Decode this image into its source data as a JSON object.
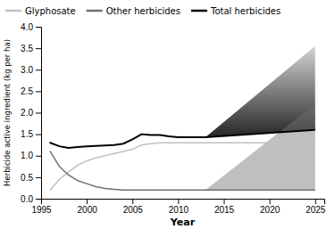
{
  "chart_data": {
    "type": "line",
    "xlabel": "Year",
    "ylabel": "Herbicide active ingredient (kg per ha)",
    "xlim": [
      1995,
      2026
    ],
    "ylim": [
      0.0,
      4.0
    ],
    "xticks": [
      1995,
      2000,
      2005,
      2010,
      2015,
      2020,
      2025
    ],
    "yticks": [
      {
        "value": 0.0,
        "label": "0.0"
      },
      0.5,
      {
        "value": 1.0,
        "label": "1.0"
      },
      1.5,
      {
        "value": 2.0,
        "label": "2.0"
      },
      2.5,
      {
        "value": 3.0,
        "label": "3.0"
      },
      3.5,
      {
        "value": 4.0,
        "label": "4.0"
      }
    ],
    "grid": false,
    "legend": "upper left",
    "x": [
      1996,
      1997,
      1998,
      1999,
      2000,
      2001,
      2002,
      2003,
      2004,
      2005,
      2006,
      2007,
      2008,
      2009,
      2010,
      2011,
      2012,
      2013
    ],
    "series": [
      {
        "name": "Glyphosate",
        "color": "#c0c0c0",
        "values": [
          0.2,
          0.45,
          0.62,
          0.78,
          0.88,
          0.95,
          1.0,
          1.05,
          1.1,
          1.15,
          1.25,
          1.28,
          1.3,
          1.3,
          1.3,
          1.3,
          1.3,
          1.3
        ],
        "projection": {
          "x": [
            2013,
            2025
          ],
          "values": [
            1.3,
            1.3
          ],
          "low": [
            1.3,
            1.3
          ],
          "high": [
            1.3,
            1.3
          ]
        }
      },
      {
        "name": "Other herbicides",
        "color": "#707070",
        "values": [
          1.1,
          0.75,
          0.55,
          0.42,
          0.35,
          0.28,
          0.24,
          0.22,
          0.2,
          0.2,
          0.2,
          0.2,
          0.2,
          0.2,
          0.2,
          0.2,
          0.2,
          0.2
        ],
        "projection": {
          "x": [
            2013,
            2025
          ],
          "values": [
            0.2,
            0.2
          ],
          "low": [
            0.2,
            0.2
          ],
          "high": [
            0.2,
            2.2
          ]
        }
      },
      {
        "name": "Total herbicides",
        "color": "#000000",
        "values": [
          1.3,
          1.22,
          1.18,
          1.2,
          1.22,
          1.23,
          1.24,
          1.25,
          1.28,
          1.38,
          1.5,
          1.48,
          1.48,
          1.45,
          1.43,
          1.43,
          1.43,
          1.43
        ],
        "projection": {
          "x": [
            2013,
            2025
          ],
          "values": [
            1.43,
            1.6
          ],
          "low": [
            1.43,
            1.6
          ],
          "high": [
            1.43,
            3.55
          ]
        }
      }
    ]
  }
}
